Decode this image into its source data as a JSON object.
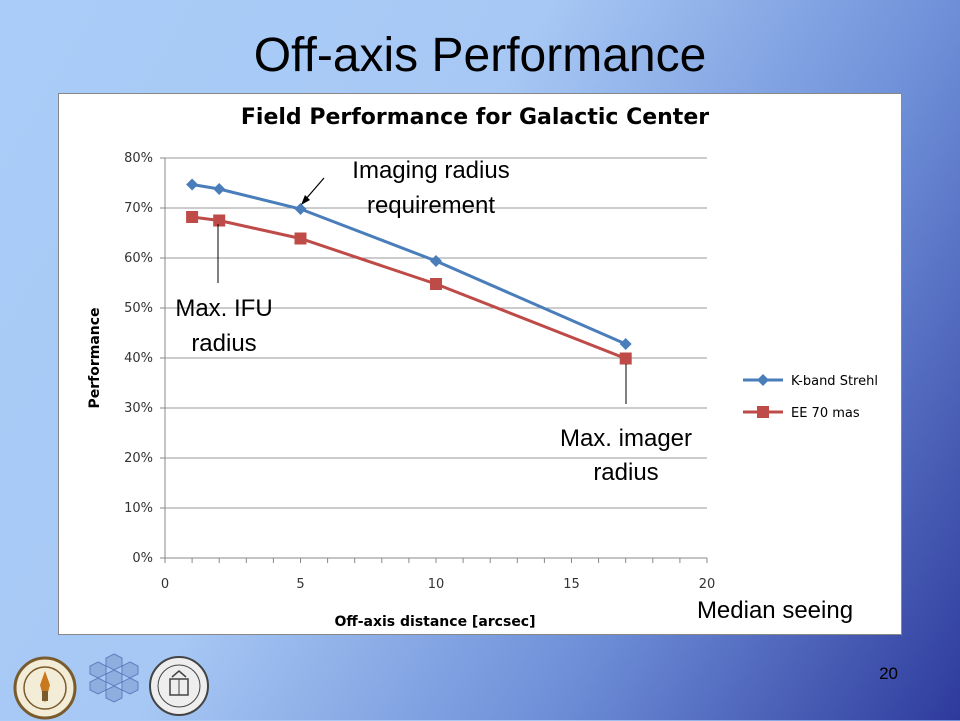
{
  "slide": {
    "title": "Off-axis Performance",
    "page_number": "20"
  },
  "annotations": {
    "imaging_radius": [
      "Imaging radius",
      "requirement"
    ],
    "ifu_radius": [
      "Max. IFU",
      "radius"
    ],
    "imager_radius": [
      "Max. imager",
      "radius"
    ],
    "seeing": "Median seeing"
  },
  "logos": [
    "caltech-seal-icon",
    "segmented-mirror-icon",
    "uc-seal-icon"
  ],
  "chart_data": {
    "type": "line",
    "title": "Field Performance for Galactic Center",
    "xlabel": "Off-axis distance [arcsec]",
    "ylabel": "Performance",
    "xlim": [
      0,
      20
    ],
    "ylim": [
      0,
      0.8
    ],
    "xticks": [
      0,
      5,
      10,
      15,
      20
    ],
    "yticks": [
      0,
      0.1,
      0.2,
      0.3,
      0.4,
      0.5,
      0.6,
      0.7,
      0.8
    ],
    "ytick_labels": [
      "0%",
      "10%",
      "20%",
      "30%",
      "40%",
      "50%",
      "60%",
      "70%",
      "80%"
    ],
    "grid": true,
    "legend_position": "right",
    "series": [
      {
        "name": "K-band Strehl",
        "color": "#4a7ebb",
        "marker": "diamond",
        "x": [
          1,
          2,
          5,
          10,
          17
        ],
        "y": [
          0.747,
          0.738,
          0.698,
          0.594,
          0.428
        ]
      },
      {
        "name": "EE 70 mas",
        "color": "#be4b48",
        "marker": "square",
        "x": [
          1,
          2,
          5,
          10,
          17
        ],
        "y": [
          0.682,
          0.675,
          0.639,
          0.548,
          0.399
        ]
      }
    ]
  }
}
